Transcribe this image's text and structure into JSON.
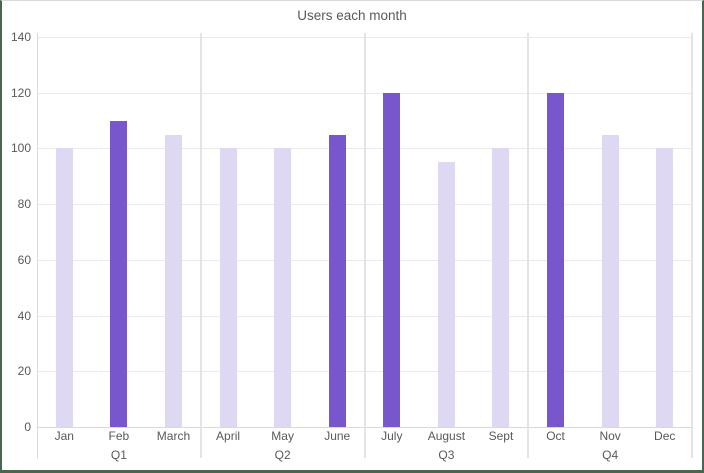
{
  "chart_data": {
    "type": "bar",
    "title": "Users each month",
    "categories": [
      "Jan",
      "Feb",
      "March",
      "April",
      "May",
      "June",
      "July",
      "August",
      "Sept",
      "Oct",
      "Nov",
      "Dec"
    ],
    "values": [
      100,
      110,
      105,
      100,
      100,
      105,
      120,
      95,
      100,
      120,
      105,
      100
    ],
    "highlighted_categories": [
      "Feb",
      "June",
      "July",
      "Oct"
    ],
    "group_labels": [
      "Q1",
      "Q2",
      "Q3",
      "Q4"
    ],
    "group_size": 3,
    "y_ticks": [
      0,
      20,
      40,
      60,
      80,
      100,
      120,
      140
    ],
    "ylim": [
      0,
      140
    ],
    "xlabel": "",
    "ylabel": "",
    "legend": "none",
    "grid": "horizontal gridlines with vertical quarter separators",
    "colors": {
      "bar_default": "#ded8f3",
      "bar_highlight": "#7857cd",
      "title_text": "#595959",
      "axis_text": "#595959",
      "gridline": "#eaeaea",
      "separator": "#e4e4e4",
      "axis_line": "#d9d9d9",
      "outer_border_green": "#49674f",
      "top_border": "#d9d9d9"
    }
  }
}
